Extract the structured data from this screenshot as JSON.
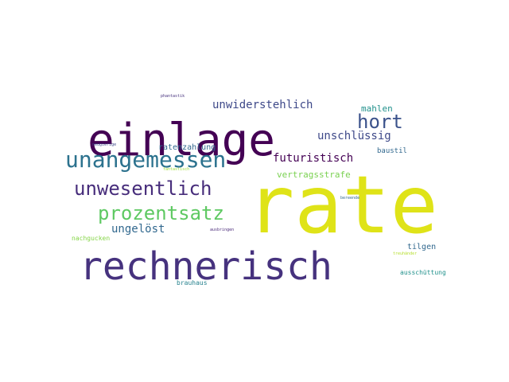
{
  "words": [
    {
      "text": "rate",
      "color": "#dfe318"
    },
    {
      "text": "rechnerisch",
      "color": "#46327e"
    },
    {
      "text": "einlage",
      "color": "#440154"
    },
    {
      "text": "unangemessen",
      "color": "#2c728e"
    },
    {
      "text": "unwesentlich",
      "color": "#472d7b"
    },
    {
      "text": "prozentsatz",
      "color": "#5ec962"
    },
    {
      "text": "hort",
      "color": "#3b528b"
    },
    {
      "text": "ungelöst",
      "color": "#31688e"
    },
    {
      "text": "futuristisch",
      "color": "#440154"
    },
    {
      "text": "unwiderstehlich",
      "color": "#3e4989"
    },
    {
      "text": "unschlüssig",
      "color": "#3e4989"
    },
    {
      "text": "vertragsstrafe",
      "color": "#7ad151"
    },
    {
      "text": "mahlen",
      "color": "#21918c"
    },
    {
      "text": "ratenzahlung",
      "color": "#31688e"
    },
    {
      "text": "tilgen",
      "color": "#31688e"
    },
    {
      "text": "baustil",
      "color": "#31688e"
    },
    {
      "text": "ausschüttung",
      "color": "#21918c"
    },
    {
      "text": "brauhaus",
      "color": "#26828e"
    },
    {
      "text": "nachgucken",
      "color": "#86d549"
    },
    {
      "text": "fantastisch",
      "color": "#a0da39"
    },
    {
      "text": "treuhänder",
      "color": "#b5de2b"
    },
    {
      "text": "ausbringen",
      "color": "#482878"
    },
    {
      "text": "phantastik",
      "color": "#46327e"
    },
    {
      "text": "neugierige",
      "color": "#3e4989"
    },
    {
      "text": "bereende",
      "color": "#31688e"
    }
  ]
}
